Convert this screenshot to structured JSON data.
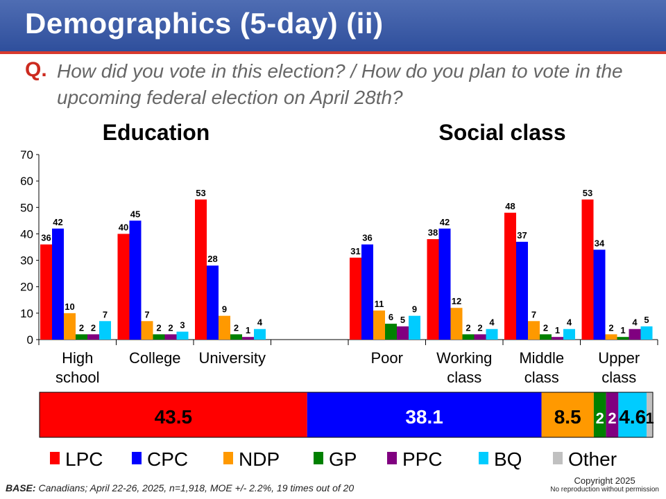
{
  "header": {
    "title": "Demographics (5-day) (ii)",
    "question_prefix": "Q.",
    "question_text": "How did you vote in this election? / How do you plan to vote in the upcoming federal election on April 28th?"
  },
  "chart_data": {
    "type": "bar",
    "ylim": [
      0,
      70
    ],
    "yticks": [
      0,
      10,
      20,
      30,
      40,
      50,
      60,
      70
    ],
    "series": [
      {
        "name": "LPC",
        "color": "#ff0000"
      },
      {
        "name": "CPC",
        "color": "#0000ff"
      },
      {
        "name": "NDP",
        "color": "#ff9900"
      },
      {
        "name": "GP",
        "color": "#008000"
      },
      {
        "name": "PPC",
        "color": "#800080"
      },
      {
        "name": "BQ",
        "color": "#00ccff"
      },
      {
        "name": "Other",
        "color": "#c0c0c0"
      }
    ],
    "groups": [
      {
        "title": "Education",
        "categories": [
          {
            "label": "High school",
            "lines": [
              "High",
              "school"
            ],
            "values": [
              36,
              42,
              10,
              2,
              2,
              7
            ]
          },
          {
            "label": "College",
            "lines": [
              "College"
            ],
            "values": [
              40,
              45,
              7,
              2,
              2,
              3
            ]
          },
          {
            "label": "University",
            "lines": [
              "University"
            ],
            "values": [
              53,
              28,
              9,
              2,
              1,
              4
            ]
          }
        ]
      },
      {
        "title": "Social class",
        "categories": [
          {
            "label": "Poor",
            "lines": [
              "Poor"
            ],
            "values": [
              31,
              36,
              11,
              6,
              5,
              9
            ]
          },
          {
            "label": "Working class",
            "lines": [
              "Working",
              "class"
            ],
            "values": [
              38,
              42,
              12,
              2,
              2,
              4
            ]
          },
          {
            "label": "Middle class",
            "lines": [
              "Middle",
              "class"
            ],
            "values": [
              48,
              37,
              7,
              2,
              1,
              4
            ]
          },
          {
            "label": "Upper class",
            "lines": [
              "Upper",
              "class"
            ],
            "values": [
              53,
              34,
              2,
              1,
              4,
              5
            ]
          }
        ]
      }
    ],
    "overall": [
      {
        "party": "LPC",
        "value": 43.5,
        "label": "43.5"
      },
      {
        "party": "CPC",
        "value": 38.1,
        "label": "38.1"
      },
      {
        "party": "NDP",
        "value": 8.5,
        "label": "8.5"
      },
      {
        "party": "GP",
        "value": 2,
        "label": "2"
      },
      {
        "party": "PPC",
        "value": 2,
        "label": "2"
      },
      {
        "party": "BQ",
        "value": 4.6,
        "label": "4.6"
      },
      {
        "party": "Other",
        "value": 1,
        "label": "1"
      }
    ],
    "legend": [
      "LPC",
      "CPC",
      "NDP",
      "GP",
      "PPC",
      "BQ",
      "Other"
    ]
  },
  "footer": {
    "base_label": "BASE:",
    "base_text": " Canadians; April 22-26, 2025, n=1,918, MOE +/- 2.2%, 19 times out of 20",
    "copyright": "Copyright 2025",
    "no_reproduction": "No reproduction without permission"
  }
}
